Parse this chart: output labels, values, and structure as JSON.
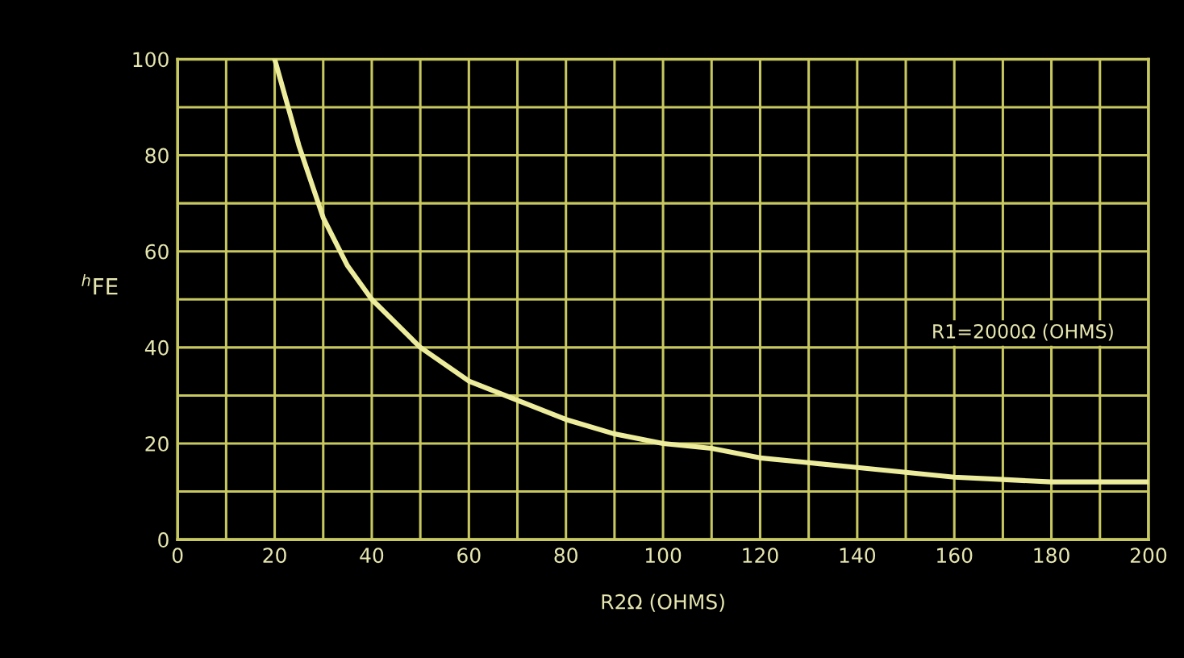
{
  "chart_data": {
    "type": "line",
    "xlabel": "R2Ω (OHMS)",
    "ylabel": "$^{h}$FE",
    "annotations": [
      "R1=2000Ω (OHMS)"
    ],
    "series": [
      {
        "color": "#ecec9c",
        "x": [
          20,
          25,
          30,
          35,
          40,
          50,
          60,
          70,
          80,
          90,
          100,
          110,
          120,
          130,
          140,
          150,
          160,
          170,
          180,
          190,
          200
        ],
        "values": [
          100,
          82,
          67,
          57,
          50,
          40,
          33,
          29,
          25,
          22,
          20,
          19,
          17,
          16,
          15,
          14,
          13,
          12.5,
          12,
          12,
          12
        ]
      }
    ],
    "xlim": [
      0,
      200
    ],
    "ylim": [
      0,
      100
    ],
    "xticks": [
      0,
      {
        "value": 10,
        "label": null
      },
      20,
      {
        "value": 30,
        "label": null
      },
      40,
      {
        "value": 50,
        "label": null
      },
      60,
      {
        "value": 70,
        "label": null
      },
      80,
      {
        "value": 90,
        "label": null
      },
      100,
      {
        "value": 110,
        "label": null
      },
      120,
      {
        "value": 130,
        "label": null
      },
      140,
      {
        "value": 150,
        "label": null
      },
      160,
      {
        "value": 170,
        "label": null
      },
      180,
      {
        "value": 190,
        "label": null
      },
      200
    ],
    "yticks": [
      0,
      {
        "value": 10,
        "label": null
      },
      20,
      {
        "value": 30,
        "label": null
      },
      40,
      {
        "value": 50,
        "label": null
      },
      60,
      {
        "value": 70,
        "label": null
      },
      80,
      {
        "value": 90,
        "label": null
      },
      100
    ],
    "grid": true,
    "marker": "none",
    "line_style": "solid",
    "legend": false
  }
}
